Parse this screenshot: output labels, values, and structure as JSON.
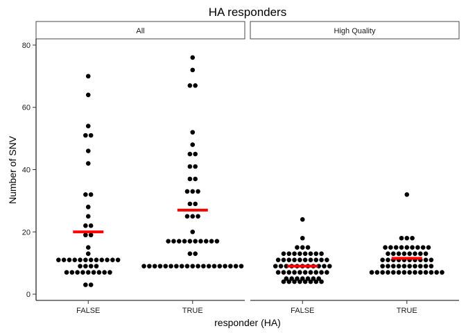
{
  "chart_data": {
    "type": "scatter",
    "style": "dotplot",
    "title": "HA responders",
    "xlabel": "responder (HA)",
    "ylabel": "Number of SNV",
    "ylim": [
      -2,
      82
    ],
    "yticks": [
      0,
      20,
      40,
      60,
      80
    ],
    "categories": [
      "FALSE",
      "TRUE"
    ],
    "grid": false,
    "point_color": "#000000",
    "summary_color": "#ff0000",
    "panels": [
      {
        "name": "All",
        "groups": [
          {
            "category": "FALSE",
            "summary": 20,
            "values": [
              3,
              3,
              7,
              7,
              7,
              7,
              7,
              7,
              7,
              7,
              7,
              9,
              9,
              9,
              9,
              11,
              11,
              11,
              11,
              11,
              11,
              11,
              11,
              11,
              11,
              11,
              11,
              13,
              15,
              19,
              19,
              22,
              22,
              25,
              28,
              32,
              32,
              42,
              46,
              51,
              51,
              54,
              64,
              70
            ]
          },
          {
            "category": "TRUE",
            "summary": 27,
            "values": [
              9,
              9,
              9,
              9,
              9,
              9,
              9,
              9,
              9,
              9,
              9,
              9,
              9,
              9,
              9,
              9,
              9,
              9,
              9,
              13,
              13,
              17,
              17,
              17,
              17,
              17,
              17,
              17,
              17,
              17,
              17,
              20,
              25,
              25,
              25,
              29,
              29,
              33,
              33,
              33,
              37,
              37,
              41,
              41,
              45,
              45,
              48,
              52,
              67,
              67,
              72,
              76
            ]
          }
        ]
      },
      {
        "name": "High Quality",
        "groups": [
          {
            "category": "FALSE",
            "summary": 9,
            "values": [
              4,
              4,
              4,
              4,
              4,
              4,
              4,
              4,
              5,
              5,
              5,
              5,
              5,
              5,
              5,
              7,
              7,
              7,
              7,
              7,
              7,
              7,
              7,
              7,
              7,
              9,
              9,
              9,
              9,
              9,
              9,
              9,
              9,
              9,
              9,
              9,
              11,
              11,
              11,
              11,
              11,
              11,
              11,
              11,
              11,
              11,
              13,
              13,
              13,
              13,
              13,
              13,
              13,
              13,
              15,
              15,
              15,
              18,
              24
            ]
          },
          {
            "category": "TRUE",
            "summary": 11.5,
            "values": [
              7,
              7,
              7,
              7,
              7,
              7,
              7,
              7,
              7,
              7,
              7,
              7,
              7,
              7,
              9,
              9,
              9,
              9,
              9,
              9,
              9,
              9,
              9,
              9,
              11,
              11,
              11,
              11,
              11,
              11,
              11,
              11,
              11,
              11,
              13,
              13,
              13,
              13,
              13,
              13,
              13,
              13,
              15,
              15,
              15,
              15,
              15,
              15,
              15,
              15,
              15,
              18,
              18,
              18,
              32
            ]
          }
        ]
      }
    ]
  }
}
